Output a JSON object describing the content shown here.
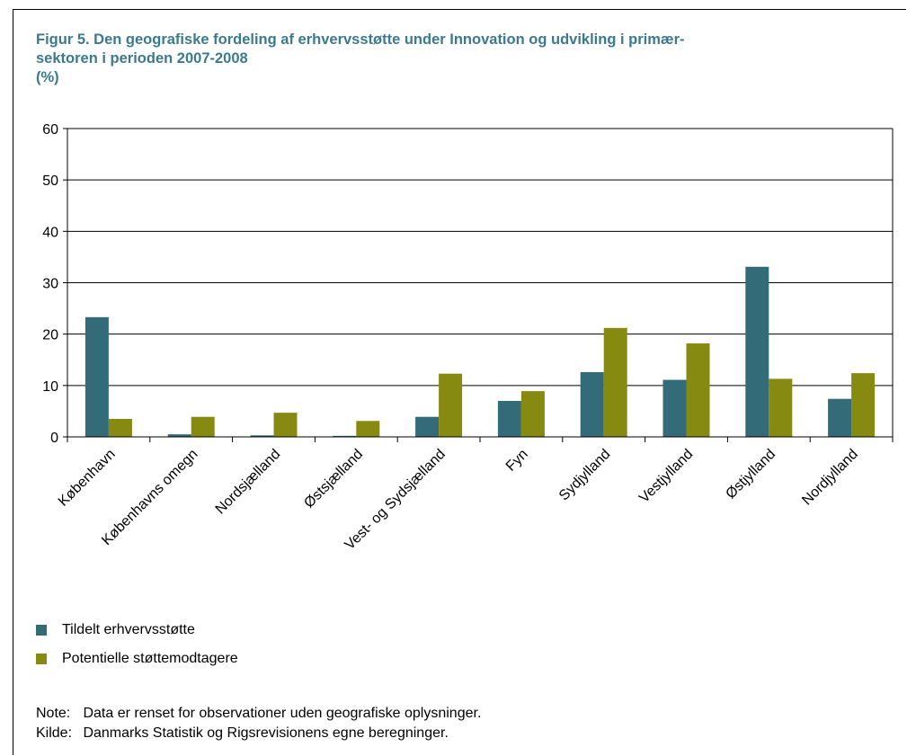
{
  "figure": {
    "title_line1": "Figur 5. Den geografiske fordeling af erhvervsstøtte under Innovation og udvikling i primær-",
    "title_line2": "sektoren i perioden 2007-2008",
    "title_line3": "(%)"
  },
  "colors": {
    "series1": "#336b78",
    "series2": "#878a11",
    "grid": "#000000"
  },
  "chart_data": {
    "type": "bar",
    "title": "Figur 5. Den geografiske fordeling af erhvervsstøtte under Innovation og udvikling i primær-sektoren i perioden 2007-2008",
    "ylabel": "(%)",
    "xlabel": "",
    "ylim": [
      0,
      60
    ],
    "yticks": [
      0,
      10,
      20,
      30,
      40,
      50,
      60
    ],
    "grid": true,
    "legend_position": "bottom-left",
    "categories": [
      "København",
      "Københavns omegn",
      "Nordsjælland",
      "Østsjælland",
      "Vest- og Sydsjælland",
      "Fyn",
      "Sydjylland",
      "Vestjylland",
      "Østjylland",
      "Nordjylland"
    ],
    "series": [
      {
        "name": "Tildelt erhvervsstøtte",
        "values": [
          23.3,
          0.5,
          0.3,
          0.2,
          3.9,
          7.0,
          12.6,
          11.1,
          33.1,
          7.4
        ]
      },
      {
        "name": "Potentielle støttemodtagere",
        "values": [
          3.5,
          3.9,
          4.7,
          3.1,
          12.3,
          8.9,
          21.2,
          18.2,
          11.3,
          12.4
        ]
      }
    ]
  },
  "notes": {
    "note_label": "Note:",
    "note_text": "Data er renset for observationer uden geografiske oplysninger.",
    "source_label": "Kilde:",
    "source_text": "Danmarks Statistik og Rigsrevisionens egne beregninger."
  }
}
